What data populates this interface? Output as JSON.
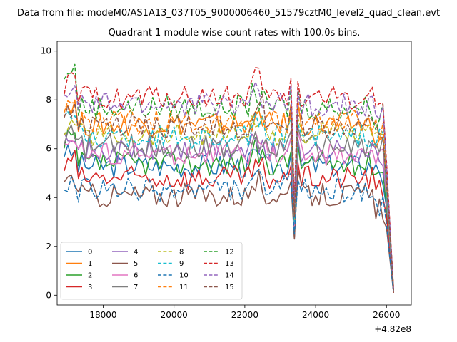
{
  "suptitle": "Data from file: modeM0/AS1A13_037T05_9000006460_51579cztM0_level2_quad_clean.evt",
  "chart_data": {
    "type": "line",
    "title": "Quadrant 1 module wise count rates with 100.0s bins.",
    "xlabel": "",
    "ylabel": "",
    "x_offset_label": "+4.82e8",
    "xlim": [
      16700,
      26700
    ],
    "ylim": [
      -0.4,
      10.4
    ],
    "xticks": [
      18000,
      20000,
      22000,
      24000,
      26000
    ],
    "yticks": [
      0,
      2,
      4,
      6,
      8,
      10
    ],
    "legend": {
      "placement": "lower-left",
      "columns": 4
    },
    "x_start": 16900,
    "x_step": 100,
    "dip_x": 23400,
    "gap_x": [
      23300,
      23400,
      23500
    ],
    "series": [
      {
        "name": "0",
        "color": "#1f77b4",
        "dash": "solid",
        "level": 5.3,
        "start": 5.8,
        "dip": 2.3,
        "end": 0.2
      },
      {
        "name": "1",
        "color": "#ff7f0e",
        "dash": "solid",
        "level": 7.0,
        "start": 7.8,
        "dip": 3.0,
        "end": 0.3
      },
      {
        "name": "2",
        "color": "#2ca02c",
        "dash": "solid",
        "level": 5.4,
        "start": 6.4,
        "dip": 2.7,
        "end": 0.2
      },
      {
        "name": "3",
        "color": "#d62728",
        "dash": "solid",
        "level": 4.8,
        "start": 5.6,
        "dip": 2.4,
        "end": 0.1
      },
      {
        "name": "4",
        "color": "#9467bd",
        "dash": "solid",
        "level": 5.9,
        "start": 6.7,
        "dip": 2.7,
        "end": 0.2
      },
      {
        "name": "5",
        "color": "#8c564b",
        "dash": "solid",
        "level": 4.1,
        "start": 4.8,
        "dip": 2.3,
        "end": 0.1
      },
      {
        "name": "6",
        "color": "#e377c2",
        "dash": "solid",
        "level": 5.8,
        "start": 6.5,
        "dip": 2.8,
        "end": 0.3
      },
      {
        "name": "7",
        "color": "#7f7f7f",
        "dash": "solid",
        "level": 6.1,
        "start": 6.6,
        "dip": 3.0,
        "end": 0.2
      },
      {
        "name": "8",
        "color": "#bcbd22",
        "dash": "dashed",
        "level": 6.6,
        "start": 7.1,
        "dip": 3.1,
        "end": 0.2
      },
      {
        "name": "9",
        "color": "#17becf",
        "dash": "dashed",
        "level": 6.5,
        "start": 7.4,
        "dip": 3.0,
        "end": 0.2
      },
      {
        "name": "10",
        "color": "#1f77b4",
        "dash": "dashed",
        "level": 4.3,
        "start": 4.5,
        "dip": 2.5,
        "end": 0.1
      },
      {
        "name": "11",
        "color": "#ff7f0e",
        "dash": "dashed",
        "level": 7.1,
        "start": 7.8,
        "dip": 3.2,
        "end": 0.3
      },
      {
        "name": "12",
        "color": "#2ca02c",
        "dash": "dashed",
        "level": 7.7,
        "start": 9.3,
        "dip": 3.6,
        "end": 0.2
      },
      {
        "name": "13",
        "color": "#d62728",
        "dash": "dashed",
        "level": 8.1,
        "start": 8.8,
        "dip": 3.8,
        "end": 0.2
      },
      {
        "name": "14",
        "color": "#9467bd",
        "dash": "dashed",
        "level": 7.8,
        "start": 8.3,
        "dip": 3.5,
        "end": 0.2
      },
      {
        "name": "15",
        "color": "#8c564b",
        "dash": "dashed",
        "level": 6.9,
        "start": 7.5,
        "dip": 3.2,
        "end": 0.2
      }
    ]
  }
}
